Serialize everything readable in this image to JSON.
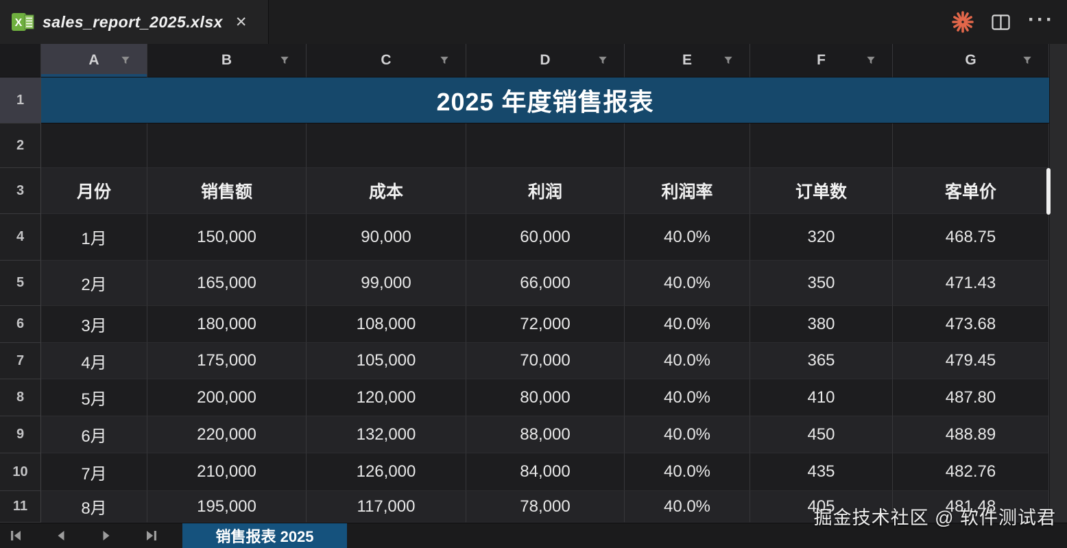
{
  "window": {
    "tab_title": "sales_report_2025.xlsx",
    "close_label": "✕",
    "more_label": "···"
  },
  "sheet": {
    "column_letters": [
      "A",
      "B",
      "C",
      "D",
      "E",
      "F",
      "G"
    ],
    "selected_column": "A",
    "selected_row": "1",
    "row_numbers": [
      "1",
      "2",
      "3",
      "4",
      "5",
      "6",
      "7",
      "8",
      "9",
      "10",
      "11"
    ],
    "title": "2025 年度销售报表",
    "headers": [
      "月份",
      "销售额",
      "成本",
      "利润",
      "利润率",
      "订单数",
      "客单价"
    ],
    "rows": [
      [
        "1月",
        "150,000",
        "90,000",
        "60,000",
        "40.0%",
        "320",
        "468.75"
      ],
      [
        "2月",
        "165,000",
        "99,000",
        "66,000",
        "40.0%",
        "350",
        "471.43"
      ],
      [
        "3月",
        "180,000",
        "108,000",
        "72,000",
        "40.0%",
        "380",
        "473.68"
      ],
      [
        "4月",
        "175,000",
        "105,000",
        "70,000",
        "40.0%",
        "365",
        "479.45"
      ],
      [
        "5月",
        "200,000",
        "120,000",
        "80,000",
        "40.0%",
        "410",
        "487.80"
      ],
      [
        "6月",
        "220,000",
        "132,000",
        "88,000",
        "40.0%",
        "450",
        "488.89"
      ],
      [
        "7月",
        "210,000",
        "126,000",
        "84,000",
        "40.0%",
        "435",
        "482.76"
      ],
      [
        "8月",
        "195,000",
        "117,000",
        "78,000",
        "40.0%",
        "405",
        "481.48"
      ]
    ]
  },
  "bottom_bar": {
    "sheet_tab_label": "销售报表 2025"
  },
  "watermark": "掘金技术社区 @ 软件测试君",
  "colors": {
    "title_row_bg": "#16486b",
    "sheet_tab_bg": "#15527d",
    "starburst": "#e2674a",
    "excel_green": "#6fb03f",
    "scrollbar_thumb": "#efefef",
    "selected_header_bg": "#3c3c45",
    "selected_header_accent": "#1a4a70"
  }
}
